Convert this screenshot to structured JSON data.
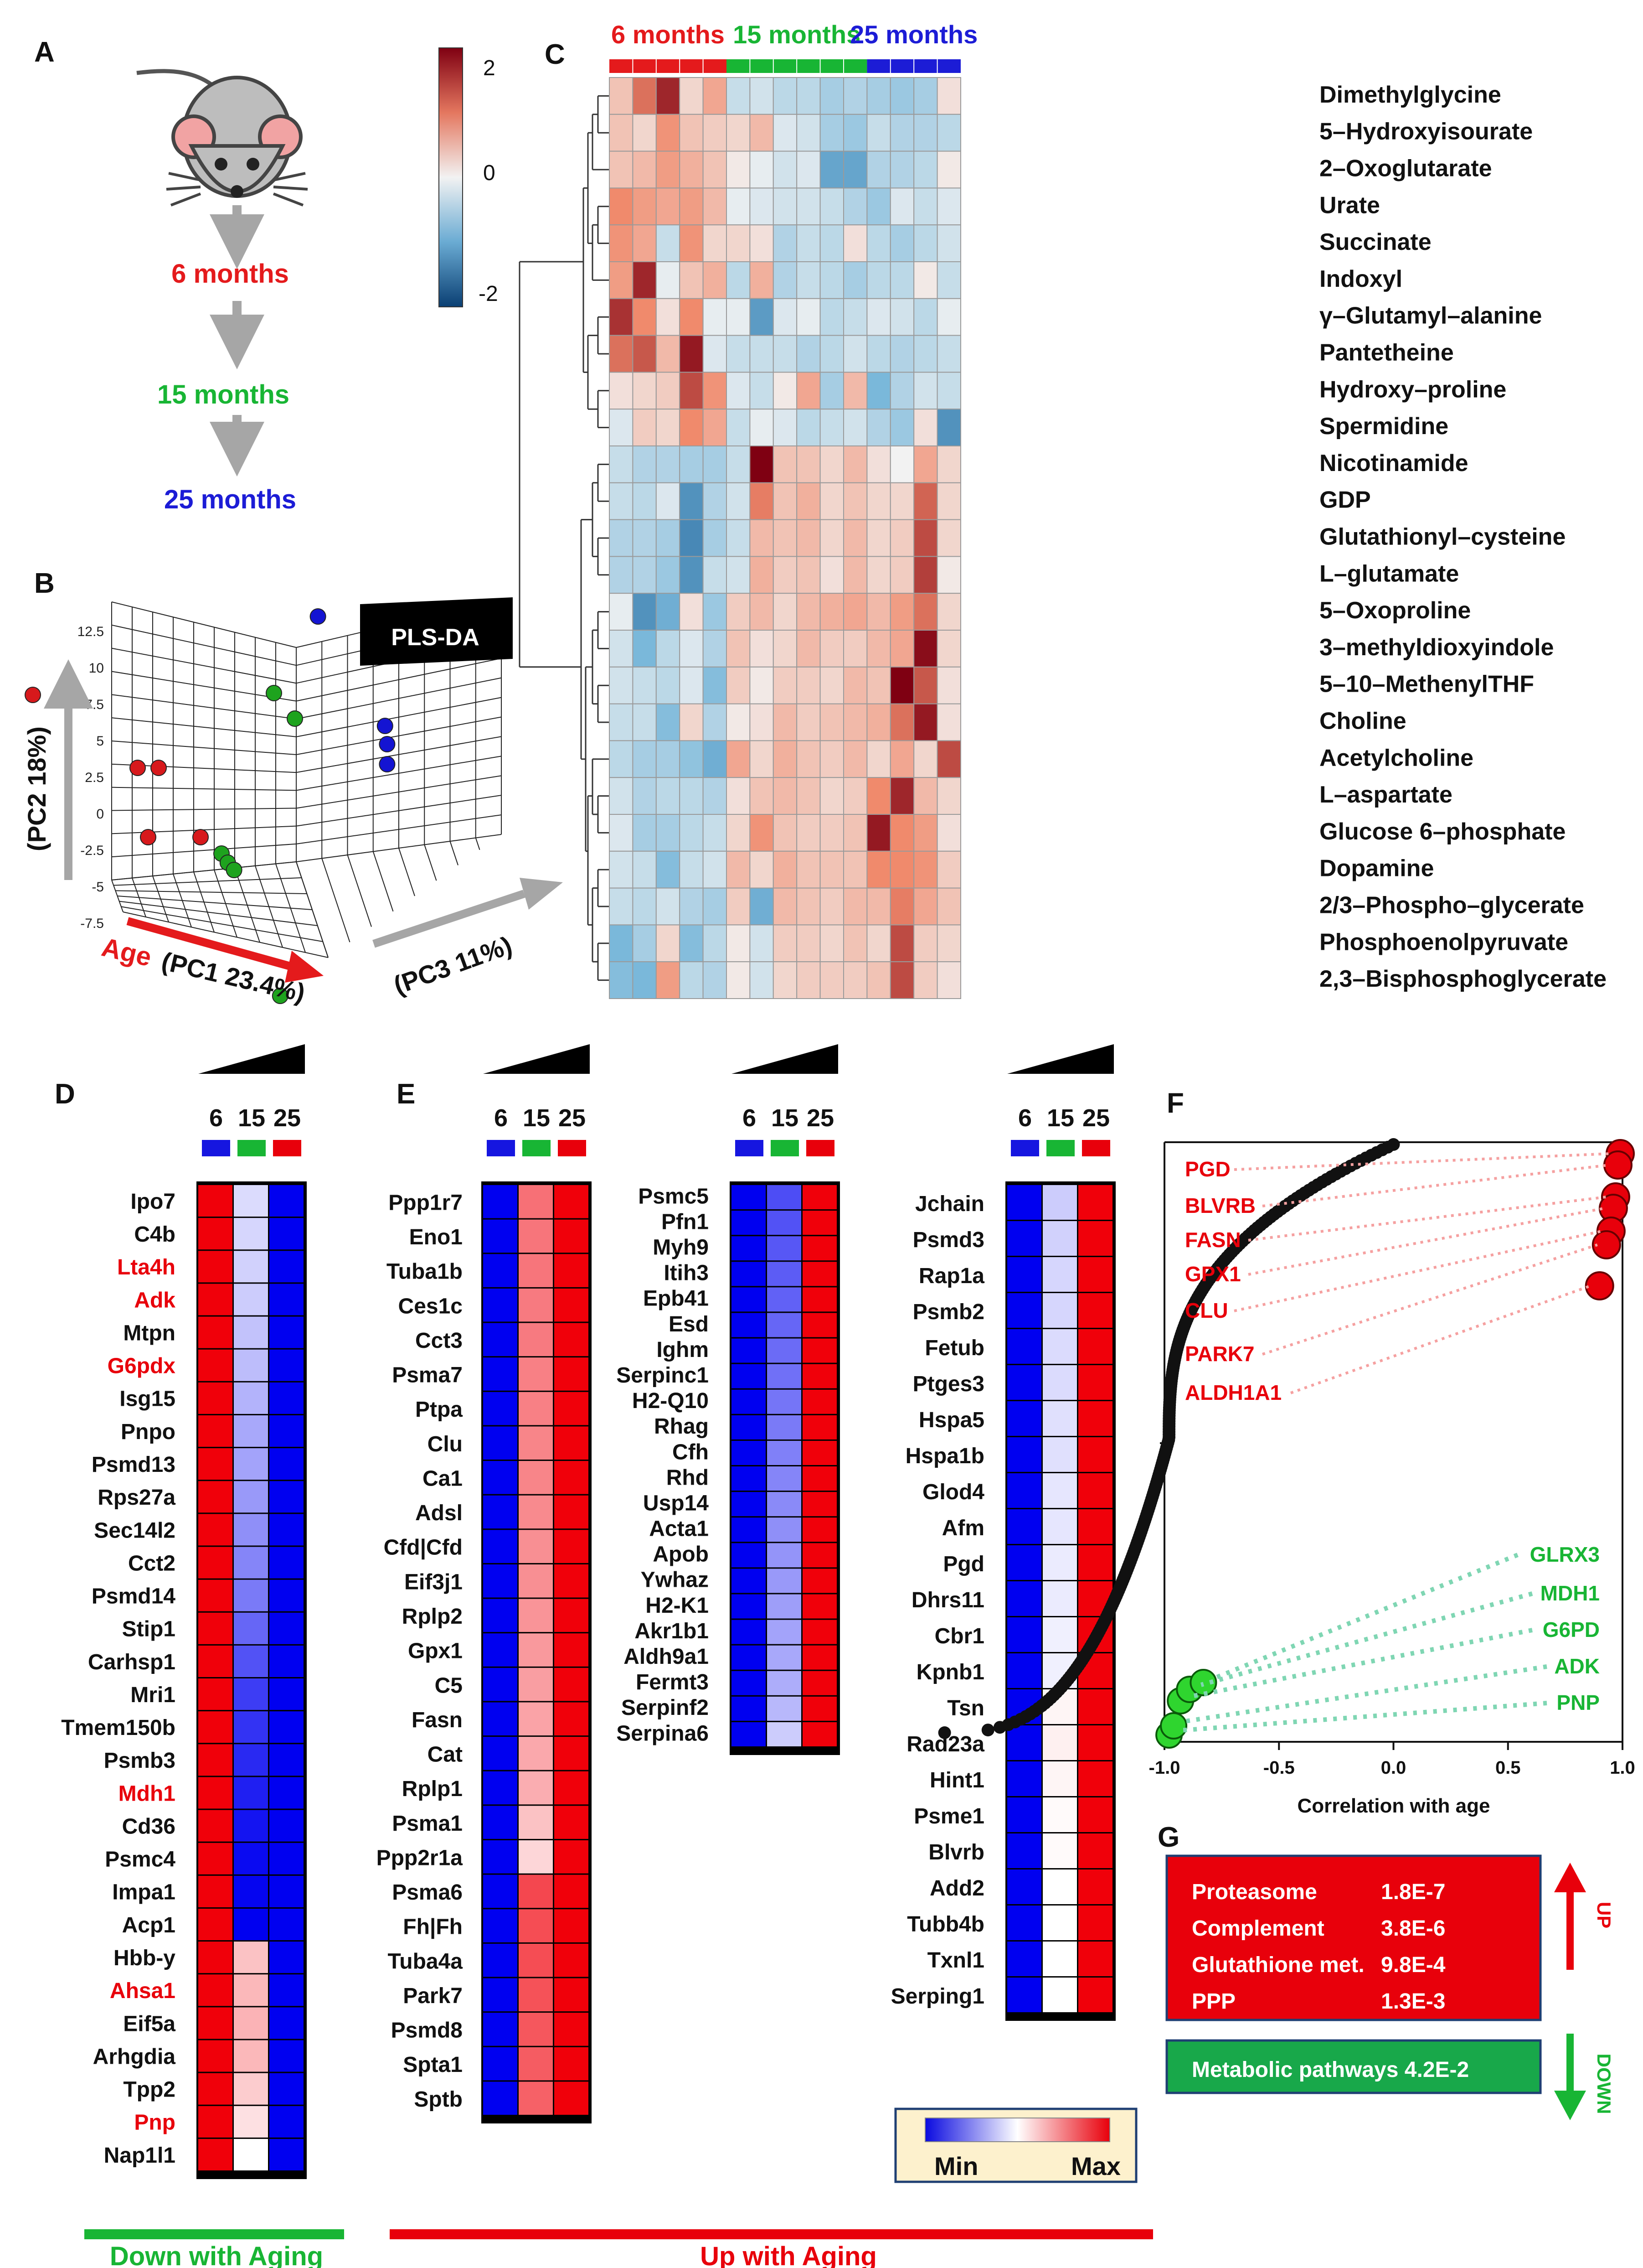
{
  "colors": {
    "red": "#e41a1c",
    "green": "#18b534",
    "blue": "#1616e0",
    "hm_low": "#2166ac",
    "hm_mid": "#f2f2f2",
    "hm_high": "#7f0012"
  },
  "panelA": {
    "letter": "A",
    "stages": [
      "6 months",
      "15 months",
      "25 months"
    ],
    "stage_colors": [
      "#e41a1c",
      "#18b534",
      "#1c1cd6"
    ]
  },
  "panelB": {
    "letter": "B",
    "badge": "PLS-DA",
    "y_axis": "(PC2 18%)",
    "x_axis_a": "Age",
    "x_axis_b": "(PC1 23.4%)",
    "z_axis": "(PC3 11%)",
    "y_ticks": [
      "12.5",
      "10",
      "7.5",
      "5",
      "2.5",
      "0",
      "-2.5",
      "-5",
      "-7.5"
    ],
    "points": [
      {
        "group": "6 months",
        "pc1": -8,
        "pc2": 4.5,
        "pc3": 0
      },
      {
        "group": "6 months",
        "pc1": -3,
        "pc2": 0.5,
        "pc3": 0
      },
      {
        "group": "6 months",
        "pc1": -2,
        "pc2": 0.5,
        "pc3": 0
      },
      {
        "group": "6 months",
        "pc1": -2.5,
        "pc2": -3.3,
        "pc3": 0
      },
      {
        "group": "6 months",
        "pc1": 0,
        "pc2": -3.3,
        "pc3": 0
      },
      {
        "group": "15 months",
        "pc1": 1,
        "pc2": -4.2,
        "pc3": 0
      },
      {
        "group": "15 months",
        "pc1": 1.3,
        "pc2": -4.7,
        "pc3": 0
      },
      {
        "group": "15 months",
        "pc1": 1.6,
        "pc2": -5.1,
        "pc3": 0
      },
      {
        "group": "15 months",
        "pc1": 3.5,
        "pc2": 4.6,
        "pc3": 0
      },
      {
        "group": "15 months",
        "pc1": 4.5,
        "pc2": 3.2,
        "pc3": 0
      },
      {
        "group": "15 months",
        "pc1": 3.8,
        "pc2": -12,
        "pc3": 0
      },
      {
        "group": "25 months",
        "pc1": 5.6,
        "pc2": 8.8,
        "pc3": 0
      },
      {
        "group": "25 months",
        "pc1": 8.8,
        "pc2": 2.8,
        "pc3": 0
      },
      {
        "group": "25 months",
        "pc1": 8.9,
        "pc2": 1.8,
        "pc3": 0
      },
      {
        "group": "25 months",
        "pc1": 8.9,
        "pc2": 0.7,
        "pc3": 0
      }
    ]
  },
  "panelC": {
    "letter": "C",
    "groups": [
      {
        "label": "6 months",
        "n": 5,
        "color": "#e41a1c"
      },
      {
        "label": "15 months",
        "n": 6,
        "color": "#18b534"
      },
      {
        "label": "25 months",
        "n": 4,
        "color": "#1c1cd6"
      }
    ],
    "scale_ticks": [
      "2",
      "0",
      "-2"
    ],
    "rows": [
      "Dimethylglycine",
      "5–Hydroxyisourate",
      "2–Oxoglutarate",
      "Urate",
      "Succinate",
      "Indoxyl",
      "γ–Glutamyl–alanine",
      "Pantetheine",
      "Hydroxy–proline",
      "Spermidine",
      "Nicotinamide",
      "GDP",
      "Glutathionyl–cysteine",
      "L–glutamate",
      "5–Oxoproline",
      "3–methyldioxyindole",
      "5–10–MethenylTHF",
      "Choline",
      "Acetylcholine",
      "L–aspartate",
      "Glucose 6–phosphate",
      "Dopamine",
      "2/3–Phospho–glycerate",
      "Phosphoenolpyruvate",
      "2,3–Bisphosphoglycerate"
    ],
    "values": [
      [
        0.5,
        1.3,
        1.9,
        0.3,
        0.8,
        -0.4,
        -0.3,
        -0.5,
        -0.5,
        -0.7,
        -0.6,
        -0.7,
        -0.8,
        -0.7,
        0.2
      ],
      [
        0.5,
        0.3,
        1.0,
        0.5,
        0.4,
        0.3,
        0.6,
        -0.2,
        -0.3,
        -0.7,
        -0.8,
        -0.4,
        -0.6,
        -0.6,
        -0.5
      ],
      [
        0.5,
        0.6,
        0.9,
        0.7,
        0.5,
        0.1,
        -0.1,
        -0.3,
        -0.2,
        -1.3,
        -1.3,
        -0.6,
        -0.6,
        -0.5,
        0.1
      ],
      [
        1.1,
        0.9,
        0.8,
        0.9,
        0.6,
        -0.1,
        -0.2,
        -0.3,
        -0.3,
        -0.4,
        -0.6,
        -0.8,
        -0.2,
        -0.4,
        -0.2
      ],
      [
        1.0,
        0.8,
        -0.4,
        1.0,
        0.3,
        0.3,
        0.2,
        -0.6,
        -0.4,
        -0.5,
        0.2,
        -0.5,
        -0.7,
        -0.5,
        -0.3
      ],
      [
        0.9,
        1.9,
        -0.1,
        0.5,
        0.7,
        -0.5,
        0.7,
        -0.6,
        -0.4,
        -0.5,
        -0.7,
        -0.5,
        -0.5,
        0.1,
        -0.4
      ],
      [
        1.8,
        1.1,
        0.2,
        1.1,
        -0.1,
        -0.1,
        -1.4,
        -0.2,
        -0.1,
        -0.5,
        -0.4,
        -0.2,
        -0.3,
        -0.5,
        -0.1
      ],
      [
        1.3,
        1.5,
        0.6,
        2.0,
        -0.2,
        -0.4,
        -0.4,
        -0.4,
        -0.6,
        -0.5,
        -0.3,
        -0.5,
        -0.6,
        -0.5,
        -0.4
      ],
      [
        0.2,
        0.3,
        0.4,
        1.6,
        1.0,
        -0.2,
        -0.4,
        0.1,
        0.8,
        -0.7,
        0.6,
        -1.1,
        -0.6,
        -0.3,
        -0.4
      ],
      [
        -0.2,
        0.4,
        0.3,
        1.1,
        0.8,
        -0.4,
        -0.1,
        -0.2,
        -0.5,
        -0.4,
        -0.3,
        -0.6,
        -0.8,
        0.2,
        -1.5
      ],
      [
        -0.4,
        -0.6,
        -0.6,
        -0.7,
        -0.7,
        -0.4,
        2.2,
        0.5,
        0.5,
        0.3,
        0.6,
        0.2,
        0.0,
        0.8,
        0.3
      ],
      [
        -0.4,
        -0.5,
        -0.2,
        -1.5,
        -0.6,
        -0.3,
        1.2,
        0.5,
        0.7,
        0.3,
        0.5,
        0.3,
        0.3,
        1.4,
        0.3
      ],
      [
        -0.6,
        -0.6,
        -0.7,
        -1.6,
        -0.7,
        -0.4,
        0.6,
        0.5,
        0.6,
        0.3,
        0.6,
        0.3,
        0.4,
        1.6,
        0.3
      ],
      [
        -0.6,
        -0.6,
        -0.8,
        -1.5,
        -0.4,
        -0.3,
        0.7,
        0.4,
        0.5,
        0.2,
        0.6,
        0.3,
        0.4,
        1.7,
        0.1
      ],
      [
        -0.1,
        -1.5,
        -1.2,
        0.2,
        -0.8,
        0.4,
        0.6,
        0.3,
        0.6,
        0.7,
        0.8,
        0.6,
        0.9,
        1.3,
        0.3
      ],
      [
        -0.3,
        -1.1,
        -0.5,
        -0.2,
        -0.6,
        0.5,
        0.2,
        0.3,
        0.6,
        0.4,
        0.4,
        0.6,
        0.8,
        2.1,
        0.3
      ],
      [
        -0.3,
        -0.4,
        -0.5,
        -0.2,
        -1.0,
        0.4,
        0.1,
        0.4,
        0.4,
        0.3,
        0.6,
        0.5,
        2.2,
        1.5,
        0.2
      ],
      [
        -0.4,
        -0.4,
        -1.0,
        0.3,
        -0.6,
        0.1,
        0.2,
        0.6,
        0.4,
        0.5,
        0.6,
        0.7,
        1.3,
        2.0,
        0.2
      ],
      [
        -0.5,
        -0.7,
        -0.7,
        -0.9,
        -1.2,
        0.8,
        0.3,
        0.7,
        0.5,
        0.4,
        0.6,
        0.3,
        0.8,
        0.3,
        1.6
      ],
      [
        -0.3,
        -0.6,
        -0.5,
        -0.5,
        -0.6,
        0.2,
        0.5,
        0.6,
        0.5,
        0.3,
        0.4,
        1.1,
        1.9,
        0.6,
        0.3
      ],
      [
        -0.2,
        -0.7,
        -0.7,
        -0.5,
        -0.4,
        0.3,
        1.0,
        0.5,
        0.4,
        0.4,
        0.5,
        2.0,
        1.1,
        0.9,
        0.2
      ],
      [
        -0.3,
        -0.4,
        -1.0,
        -0.4,
        -0.3,
        0.6,
        0.3,
        0.7,
        0.5,
        0.5,
        0.5,
        1.1,
        1.1,
        1.0,
        0.4
      ],
      [
        -0.4,
        -0.5,
        -0.3,
        -0.6,
        -0.7,
        0.4,
        -1.2,
        0.6,
        0.5,
        0.4,
        0.6,
        0.6,
        1.2,
        0.8,
        0.5
      ],
      [
        -1.1,
        -0.7,
        0.3,
        -1.0,
        -0.5,
        0.1,
        -0.3,
        0.4,
        0.4,
        0.3,
        0.5,
        0.3,
        1.6,
        0.4,
        0.3
      ],
      [
        -1.0,
        -1.1,
        0.9,
        -0.5,
        -0.6,
        0.1,
        -0.3,
        0.3,
        0.4,
        0.4,
        0.4,
        0.5,
        1.6,
        0.4,
        0.2
      ]
    ]
  },
  "panelD": {
    "letter": "D",
    "ages": [
      "6",
      "15",
      "25"
    ],
    "genes": [
      "Ipo7",
      "C4b",
      "Lta4h",
      "Adk",
      "Mtpn",
      "G6pdx",
      "Isg15",
      "Pnpo",
      "Psmd13",
      "Rps27a",
      "Sec14l2",
      "Cct2",
      "Psmd14",
      "Stip1",
      "Carhsp1",
      "Mri1",
      "Tmem150b",
      "Psmb3",
      "Mdh1",
      "Cd36",
      "Psmc4",
      "Impa1",
      "Acp1",
      "Hbb-y",
      "Ahsa1",
      "Eif5a",
      "Arhgdia",
      "Tpp2",
      "Pnp",
      "Nap1l1"
    ],
    "highlight": [
      "Lta4h",
      "Adk",
      "G6pdx",
      "Mdh1",
      "Ahsa1",
      "Pnp"
    ],
    "mid_level": [
      0.43,
      0.42,
      0.41,
      0.4,
      0.38,
      0.37,
      0.35,
      0.33,
      0.32,
      0.3,
      0.28,
      0.26,
      0.24,
      0.2,
      0.16,
      0.12,
      0.1,
      0.08,
      0.06,
      0.04,
      0.02,
      0.01,
      0.0,
      0.62,
      0.64,
      0.65,
      0.64,
      0.6,
      0.56,
      0.5
    ]
  },
  "panelE": {
    "letter": "E",
    "ages": [
      "6",
      "15",
      "25"
    ],
    "col1": {
      "genes": [
        "Ppp1r7",
        "Eno1",
        "Tuba1b",
        "Ces1c",
        "Cct3",
        "Psma7",
        "Ptpa",
        "Clu",
        "Ca1",
        "Adsl",
        "Cfd|Cfd",
        "Eif3j1",
        "Rplp2",
        "Gpx1",
        "C5",
        "Fasn",
        "Cat",
        "Rplp1",
        "Psma1",
        "Ppp2r1a",
        "Psma6",
        "Fh|Fh",
        "Tuba4a",
        "Park7",
        "Psmd8",
        "Spta1",
        "Sptb"
      ],
      "mid_level": [
        0.78,
        0.77,
        0.77,
        0.76,
        0.76,
        0.75,
        0.75,
        0.74,
        0.74,
        0.73,
        0.72,
        0.72,
        0.71,
        0.7,
        0.69,
        0.68,
        0.67,
        0.66,
        0.62,
        0.58,
        0.86,
        0.85,
        0.85,
        0.84,
        0.83,
        0.82,
        0.81
      ]
    },
    "col2": {
      "genes": [
        "Psmc5",
        "Pfn1",
        "Myh9",
        "Itih3",
        "Epb41",
        "Esd",
        "Ighm",
        "Serpinc1",
        "H2-Q10",
        "Rhag",
        "Cfh",
        "Rhd",
        "Usp14",
        "Acta1",
        "Apob",
        "Ywhaz",
        "H2-K1",
        "Akr1b1",
        "Aldh9a1",
        "Fermt3",
        "Serpinf2",
        "Serpina6"
      ],
      "mid_level": [
        0.15,
        0.16,
        0.17,
        0.18,
        0.19,
        0.2,
        0.21,
        0.22,
        0.23,
        0.24,
        0.25,
        0.26,
        0.27,
        0.28,
        0.29,
        0.3,
        0.31,
        0.32,
        0.33,
        0.34,
        0.36,
        0.4
      ]
    },
    "col3": {
      "genes": [
        "Jchain",
        "Psmd3",
        "Rap1a",
        "Psmb2",
        "Fetub",
        "Ptges3",
        "Hspa5",
        "Hspa1b",
        "Glod4",
        "Afm",
        "Pgd",
        "Dhrs11",
        "Cbr1",
        "Kpnb1",
        "Tsn",
        "Rad23a",
        "Hint1",
        "Psme1",
        "Blvrb",
        "Add2",
        "Tubb4b",
        "Txnl1",
        "Serping1"
      ],
      "mid_level": [
        0.4,
        0.41,
        0.42,
        0.42,
        0.43,
        0.43,
        0.44,
        0.44,
        0.45,
        0.45,
        0.46,
        0.46,
        0.47,
        0.47,
        0.52,
        0.53,
        0.52,
        0.51,
        0.51,
        0.5,
        0.5,
        0.5,
        0.5
      ]
    },
    "legend_min": "Min",
    "legend_max": "Max"
  },
  "panelF": {
    "letter": "F",
    "x_axis": "Correlation with age",
    "x_ticks": [
      "-1.0",
      "-0.5",
      "0.0",
      "0.5",
      "1.0"
    ],
    "up_labels": [
      "PGD",
      "BLVRB",
      "FASN",
      "GPX1",
      "CLU",
      "PARK7",
      "ALDH1A1"
    ],
    "down_labels": [
      "GLRX3",
      "MDH1",
      "G6PD",
      "ADK",
      "PNP"
    ],
    "up_points": [
      0.99,
      0.98,
      0.97,
      0.96,
      0.95,
      0.93,
      0.9
    ],
    "down_points": [
      -0.98,
      -0.96,
      -0.93,
      -0.89,
      -0.83
    ]
  },
  "panelG": {
    "letter": "G",
    "up": [
      {
        "name": "Proteasome",
        "p": "1.8E-7"
      },
      {
        "name": "Complement",
        "p": "3.8E-6"
      },
      {
        "name": "Glutathione met.",
        "p": "9.8E-4"
      },
      {
        "name": "PPP",
        "p": "1.3E-3"
      }
    ],
    "down_text": "Metabolic pathways 4.2E-2",
    "up_arrow": "UP",
    "down_arrow": "DOWN"
  },
  "bottom": {
    "down_label": "Down with Aging",
    "up_label": "Up with Aging"
  }
}
